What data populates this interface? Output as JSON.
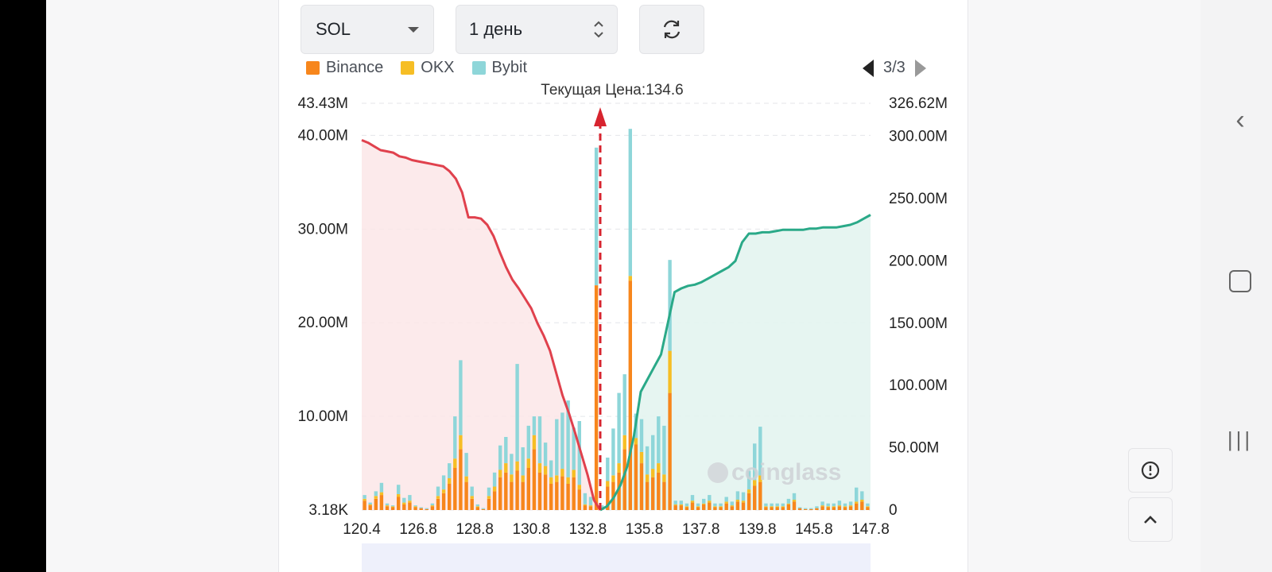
{
  "controls": {
    "symbol": "SOL",
    "period": "1 день",
    "refresh_icon": "refresh-icon"
  },
  "legend": [
    {
      "label": "Binance",
      "color": "#f7861c"
    },
    {
      "label": "OKX",
      "color": "#f6be25"
    },
    {
      "label": "Bybit",
      "color": "#8ed6d9"
    }
  ],
  "pager": {
    "text": "3/3"
  },
  "current_price_label": "Текущая Цена:134.6",
  "watermark": "coinglass",
  "colors": {
    "short_line": "#e0414d",
    "long_line": "#2aa988",
    "short_fill": "#fce6e8",
    "long_fill": "#e3f4ef",
    "arrow": "#d7242f"
  },
  "chart_data": {
    "type": "bar",
    "title": "Текущая Цена:134.6",
    "current_price": 134.6,
    "x_ticks": [
      "120.4",
      "126.8",
      "128.8",
      "130.8",
      "132.8",
      "135.8",
      "137.8",
      "139.8",
      "145.8",
      "147.8"
    ],
    "x_ticks_note": "tick labels as printed; x axis is a categorical price ladder",
    "y_left": {
      "ticks": [
        3180.0,
        10000000.0,
        20000000.0,
        30000000.0,
        40000000.0,
        43430000.0
      ],
      "tick_labels": [
        "3.18K",
        "10.00M",
        "20.00M",
        "30.00M",
        "40.00M",
        "43.43M"
      ],
      "range": [
        0,
        43430000.0
      ],
      "unit": "liquidation volume"
    },
    "y_right": {
      "ticks": [
        0,
        50000000.0,
        100000000.0,
        150000000.0,
        200000000.0,
        250000000.0,
        300000000.0,
        326620000.0
      ],
      "tick_labels": [
        "0",
        "50.00M",
        "100.00M",
        "150.00M",
        "200.00M",
        "250.00M",
        "300.00M",
        "326.62M"
      ],
      "range": [
        0,
        326620000.0
      ],
      "unit": "cumulative liquidation"
    },
    "series": [
      {
        "name": "Binance",
        "color": "#f7861c",
        "values": [
          1.0,
          0.5,
          1.2,
          1.6,
          0.4,
          0.3,
          1.4,
          0.6,
          0.8,
          0.3,
          0.2,
          0.1,
          0.4,
          1.2,
          1.8,
          2.8,
          4.5,
          6.5,
          3.0,
          1.2,
          0.3,
          0.1,
          1.2,
          2.0,
          3.5,
          4.0,
          3.0,
          4.2,
          3.0,
          4.5,
          6.5,
          4.0,
          3.8,
          2.8,
          3.0,
          3.6,
          2.8,
          3.5,
          2.2,
          0.5,
          0.4,
          24.0,
          0.2,
          2.5,
          3.0,
          4.0,
          6.5,
          24.5,
          7.0,
          5.0,
          3.0,
          3.5,
          4.0,
          3.0,
          12.5,
          0.5,
          0.5,
          0.3,
          0.8,
          0.3,
          0.6,
          0.8,
          0.3,
          0.3,
          0.7,
          0.4,
          0.9,
          0.8,
          1.8,
          2.6,
          3.0,
          0.3,
          0.3,
          0.3,
          0.3,
          0.6,
          0.9,
          0.2,
          0.1,
          0.1,
          0.2,
          0.4,
          0.3,
          0.3,
          0.4,
          0.3,
          0.4,
          0.7,
          0.9,
          0.3
        ]
      },
      {
        "name": "OKX",
        "color": "#f6be25",
        "values": [
          0.2,
          0.1,
          0.3,
          0.3,
          0.1,
          0.1,
          0.3,
          0.2,
          0.2,
          0.1,
          0.0,
          0.0,
          0.1,
          0.3,
          0.4,
          0.6,
          1.0,
          1.5,
          0.6,
          0.3,
          0.1,
          0.0,
          0.3,
          0.5,
          0.8,
          1.0,
          0.8,
          1.0,
          0.7,
          1.0,
          1.5,
          1.0,
          0.9,
          0.7,
          0.7,
          0.8,
          0.7,
          0.8,
          0.5,
          0.1,
          0.1,
          0.0,
          0.0,
          0.6,
          0.7,
          1.0,
          1.5,
          0.5,
          0.7,
          1.2,
          0.8,
          0.9,
          1.0,
          0.8,
          4.5,
          0.1,
          0.1,
          0.1,
          0.2,
          0.1,
          0.1,
          0.2,
          0.1,
          0.1,
          0.2,
          0.1,
          0.2,
          0.2,
          0.4,
          0.6,
          0.7,
          0.1,
          0.1,
          0.1,
          0.1,
          0.1,
          0.2,
          0.0,
          0.0,
          0.0,
          0.0,
          0.1,
          0.1,
          0.1,
          0.1,
          0.1,
          0.1,
          0.2,
          0.2,
          0.1
        ]
      },
      {
        "name": "Bybit",
        "color": "#8ed6d9",
        "values": [
          0.4,
          0.2,
          0.5,
          1.0,
          0.2,
          0.1,
          1.0,
          0.5,
          0.6,
          0.1,
          0.1,
          0.1,
          0.2,
          1.0,
          1.5,
          1.6,
          4.5,
          8.0,
          2.5,
          1.0,
          0.2,
          0.1,
          0.9,
          1.5,
          2.6,
          2.8,
          2.2,
          10.4,
          3.0,
          3.5,
          2.0,
          5.0,
          2.5,
          1.8,
          6.0,
          6.0,
          8.2,
          4.5,
          6.8,
          1.2,
          0.9,
          14.7,
          0.3,
          2.5,
          5.0,
          7.5,
          6.5,
          15.7,
          2.6,
          3.5,
          3.0,
          3.6,
          5.0,
          5.2,
          9.7,
          0.4,
          0.4,
          0.3,
          0.6,
          0.3,
          0.5,
          0.6,
          0.3,
          0.3,
          0.5,
          0.4,
          0.9,
          0.9,
          2.0,
          3.9,
          5.2,
          0.3,
          0.3,
          0.3,
          0.3,
          0.5,
          0.7,
          0.1,
          0.1,
          0.1,
          0.2,
          0.4,
          0.3,
          0.3,
          0.5,
          0.3,
          0.4,
          1.5,
          0.9,
          0.3
        ]
      }
    ],
    "values_unit": "millions",
    "cumulative_short": {
      "name": "cumulative short side (left of price)",
      "color": "#e0414d",
      "values_millions": [
        297,
        295,
        292,
        289,
        288,
        287,
        284,
        283,
        281,
        280,
        279,
        278,
        277,
        276,
        272,
        266,
        255,
        235,
        235,
        234,
        229,
        220,
        207,
        195,
        185,
        178,
        170,
        162,
        150,
        140,
        128,
        110,
        92,
        78,
        62,
        45,
        28,
        8,
        0
      ]
    },
    "cumulative_long": {
      "name": "cumulative long side (right of price)",
      "color": "#2aa988",
      "values_millions": [
        0,
        3,
        10,
        20,
        35,
        60,
        95,
        105,
        115,
        125,
        150,
        175,
        178,
        180,
        181,
        183,
        186,
        189,
        192,
        195,
        200,
        215,
        222,
        222,
        223,
        223,
        224,
        225,
        225,
        225,
        225,
        226,
        226,
        227,
        227,
        227,
        228,
        229,
        231,
        234,
        237
      ]
    }
  }
}
